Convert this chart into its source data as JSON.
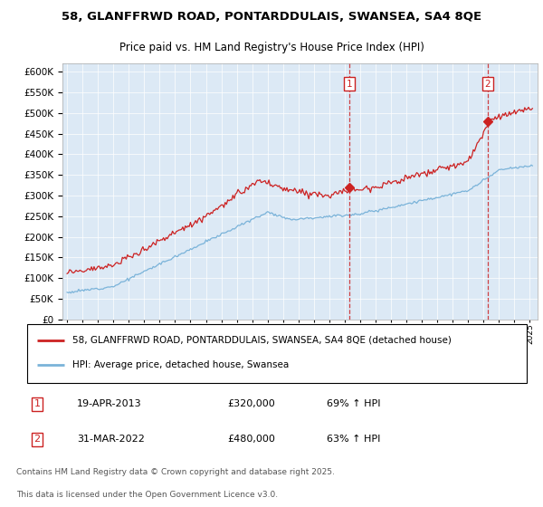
{
  "title": "58, GLANFFRWD ROAD, PONTARDDULAIS, SWANSEA, SA4 8QE",
  "subtitle": "Price paid vs. HM Land Registry's House Price Index (HPI)",
  "ylim": [
    0,
    620000
  ],
  "yticks": [
    0,
    50000,
    100000,
    150000,
    200000,
    250000,
    300000,
    350000,
    400000,
    450000,
    500000,
    550000,
    600000
  ],
  "hpi_color": "#7ab3d9",
  "house_color": "#cc2222",
  "sale1_x": 2013.3,
  "sale1_price": 320000,
  "sale2_x": 2022.25,
  "sale2_price": 480000,
  "legend_house": "58, GLANFFRWD ROAD, PONTARDDULAIS, SWANSEA, SA4 8QE (detached house)",
  "legend_hpi": "HPI: Average price, detached house, Swansea",
  "note1_label": "1",
  "note1_date": "19-APR-2013",
  "note1_price": "£320,000",
  "note1_hpi": "69% ↑ HPI",
  "note2_label": "2",
  "note2_date": "31-MAR-2022",
  "note2_price": "£480,000",
  "note2_hpi": "63% ↑ HPI",
  "footer_line1": "Contains HM Land Registry data © Crown copyright and database right 2025.",
  "footer_line2": "This data is licensed under the Open Government Licence v3.0.",
  "plot_bg": "#dce9f5"
}
